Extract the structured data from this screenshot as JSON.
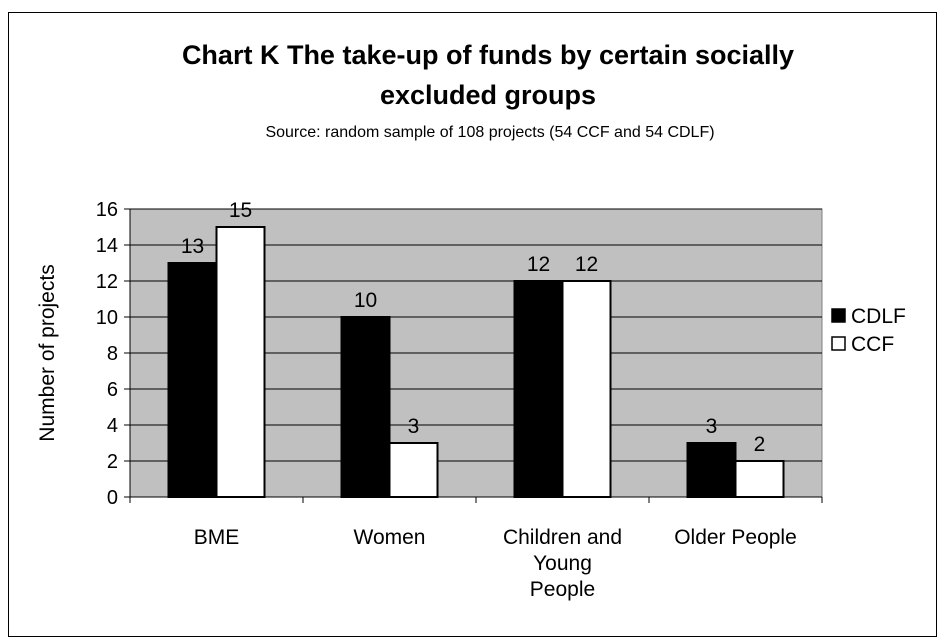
{
  "chart_data": {
    "type": "bar",
    "title_lines": [
      "Chart K  The take-up of funds by certain socially",
      "excluded groups"
    ],
    "subtitle": "Source: random sample of 108 projects (54 CCF and 54 CDLF)",
    "xlabel": "",
    "ylabel": "Number of projects",
    "ylim": [
      0,
      16
    ],
    "y_ticks": [
      0,
      2,
      4,
      6,
      8,
      10,
      12,
      14,
      16
    ],
    "categories": [
      [
        "BME"
      ],
      [
        "Women"
      ],
      [
        "Children and",
        "Young",
        "People"
      ],
      [
        "Older People"
      ]
    ],
    "series": [
      {
        "name": "CDLF",
        "values": [
          13,
          10,
          12,
          3
        ],
        "color": "#000000"
      },
      {
        "name": "CCF",
        "values": [
          15,
          3,
          12,
          2
        ],
        "color": "#ffffff"
      }
    ],
    "plot_background": "#c0c0c0",
    "grid": true,
    "legend_position": "right",
    "data_labels": true
  }
}
